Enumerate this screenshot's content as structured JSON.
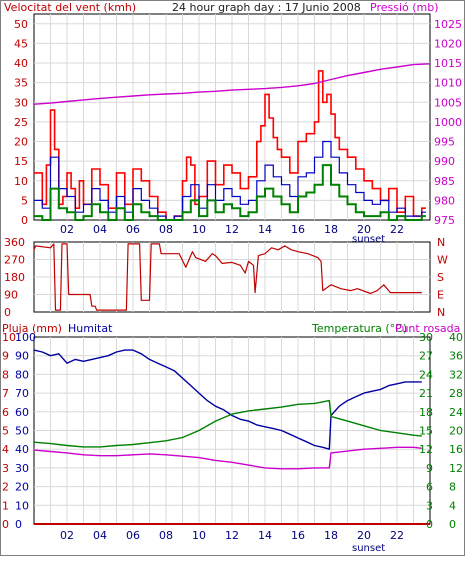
{
  "colors": {
    "wind": "#e00000",
    "wind_gust": "#ff0000",
    "wind_avg": "#0000c0",
    "wind_low": "#008000",
    "pressure": "#cc00cc",
    "direction": "#c00000",
    "rain": "#c00000",
    "humidity": "#0000a0",
    "temperature": "#008000",
    "dewpoint": "#cc00cc",
    "grid": "#d8d8d8",
    "frame": "#000000"
  },
  "chart_data": [
    {
      "type": "line",
      "title": "24 hour graph day : 17 Junio 2008",
      "left_axis_label": "Velocitat del vent (kmh)",
      "right_axis_label": "Pressió (mb)",
      "x_tick_labels": [
        "02",
        "04",
        "06",
        "08",
        "10",
        "12",
        "14",
        "16",
        "18",
        "20",
        "22"
      ],
      "x_annotation": "sunset",
      "y_ticks_left": [
        0,
        5,
        10,
        15,
        20,
        25,
        30,
        35,
        40,
        45,
        50
      ],
      "y_ticks_right": [
        975,
        980,
        985,
        990,
        995,
        1000,
        1005,
        1010,
        1015,
        1020,
        1025
      ],
      "ylim_left": [
        0,
        52.5
      ],
      "ylim_right": [
        975,
        1027.5
      ],
      "xlim": [
        0,
        24
      ],
      "series": [
        {
          "name": "Velocitat del vent (kmh)",
          "x": [
            0.0,
            0.5,
            0.75,
            1.0,
            1.25,
            1.5,
            1.75,
            2.0,
            2.25,
            2.5,
            2.75,
            3.0,
            3.5,
            4.0,
            4.5,
            5.0,
            5.5,
            6.0,
            6.5,
            7.0,
            7.5,
            8.0,
            8.5,
            9.0,
            9.25,
            9.5,
            9.75,
            10.0,
            10.5,
            11.0,
            11.5,
            12.0,
            12.5,
            13.0,
            13.5,
            13.75,
            14.0,
            14.25,
            14.5,
            14.75,
            15.0,
            15.5,
            16.0,
            16.5,
            17.0,
            17.25,
            17.5,
            17.75,
            18.0,
            18.25,
            18.5,
            19.0,
            19.5,
            20.0,
            20.5,
            21.0,
            21.5,
            22.0,
            22.5,
            23.0,
            23.5
          ],
          "values": [
            12,
            4,
            14,
            28,
            18,
            4,
            6,
            12,
            8,
            3,
            10,
            4,
            13,
            9,
            3,
            12,
            4,
            13,
            10,
            6,
            2,
            0,
            1,
            10,
            16,
            14,
            4,
            6,
            15,
            9,
            14,
            12,
            8,
            11,
            20,
            24,
            32,
            26,
            21,
            18,
            16,
            12,
            20,
            22,
            25,
            38,
            30,
            32,
            27,
            21,
            18,
            16,
            13,
            10,
            8,
            5,
            8,
            2,
            6,
            1,
            3
          ]
        },
        {
          "name": "avg wind",
          "x": [
            0.0,
            0.5,
            1.0,
            1.5,
            2.0,
            2.5,
            3.0,
            3.5,
            4.0,
            4.5,
            5.0,
            5.5,
            6.0,
            6.5,
            7.0,
            7.5,
            8.0,
            8.5,
            9.0,
            9.5,
            10.0,
            10.5,
            11.0,
            11.5,
            12.0,
            12.5,
            13.0,
            13.5,
            14.0,
            14.5,
            15.0,
            15.5,
            16.0,
            16.5,
            17.0,
            17.5,
            18.0,
            18.5,
            19.0,
            19.5,
            20.0,
            20.5,
            21.0,
            21.5,
            22.0,
            22.5,
            23.0,
            23.5
          ],
          "values": [
            5,
            3,
            16,
            8,
            6,
            2,
            4,
            8,
            5,
            2,
            6,
            2,
            8,
            5,
            3,
            1,
            0,
            1,
            6,
            9,
            3,
            9,
            5,
            8,
            6,
            4,
            5,
            10,
            14,
            11,
            9,
            6,
            11,
            12,
            16,
            20,
            16,
            12,
            9,
            7,
            5,
            4,
            5,
            2,
            3,
            1,
            1,
            2
          ]
        },
        {
          "name": "low wind",
          "x": [
            0.0,
            0.5,
            1.0,
            1.5,
            2.0,
            2.5,
            3.0,
            3.5,
            4.0,
            4.5,
            5.0,
            5.5,
            6.0,
            6.5,
            7.0,
            7.5,
            8.0,
            8.5,
            9.0,
            9.5,
            10.0,
            10.5,
            11.0,
            11.5,
            12.0,
            12.5,
            13.0,
            13.5,
            14.0,
            14.5,
            15.0,
            15.5,
            16.0,
            16.5,
            17.0,
            17.5,
            18.0,
            18.5,
            19.0,
            19.5,
            20.0,
            20.5,
            21.0,
            21.5,
            22.0,
            22.5,
            23.0,
            23.5
          ],
          "values": [
            1,
            0,
            8,
            3,
            2,
            0,
            1,
            4,
            2,
            0,
            3,
            0,
            4,
            2,
            1,
            0,
            0,
            0,
            2,
            5,
            1,
            5,
            2,
            4,
            3,
            1,
            2,
            6,
            8,
            6,
            4,
            2,
            6,
            7,
            9,
            14,
            9,
            6,
            4,
            2,
            1,
            1,
            2,
            0,
            1,
            0,
            0,
            1
          ]
        },
        {
          "name": "Pressió (mb)",
          "axis": "right",
          "x": [
            0,
            1,
            2,
            3,
            4,
            5,
            6,
            7,
            8,
            9,
            10,
            11,
            12,
            13,
            14,
            15,
            16,
            17,
            18,
            19,
            20,
            21,
            22,
            23,
            24
          ],
          "values": [
            1004.5,
            1004.8,
            1005.2,
            1005.6,
            1006.0,
            1006.3,
            1006.6,
            1006.9,
            1007.1,
            1007.3,
            1007.6,
            1007.8,
            1008.1,
            1008.3,
            1008.5,
            1008.8,
            1009.2,
            1009.8,
            1010.8,
            1011.8,
            1012.6,
            1013.4,
            1014.0,
            1014.6,
            1014.8
          ]
        }
      ]
    },
    {
      "type": "line",
      "left_axis_label": "",
      "y_ticks_left": [
        0,
        90,
        180,
        270,
        360
      ],
      "right_tick_labels": [
        "N",
        "E",
        "S",
        "W",
        "N"
      ],
      "ylim_left": [
        0,
        360
      ],
      "xlim": [
        0,
        24
      ],
      "series": [
        {
          "name": "direction",
          "x": [
            0.0,
            0.1,
            1.0,
            1.2,
            1.3,
            1.6,
            1.7,
            2.0,
            2.1,
            3.4,
            3.5,
            3.7,
            3.8,
            4.6,
            4.7,
            5.6,
            5.7,
            6.4,
            6.5,
            7.0,
            7.1,
            7.6,
            7.7,
            8.8,
            9.2,
            9.4,
            9.6,
            9.8,
            10.4,
            10.8,
            11.0,
            11.4,
            12.0,
            12.5,
            12.8,
            13.0,
            13.3,
            13.4,
            13.6,
            14.0,
            14.4,
            14.8,
            15.2,
            15.6,
            16.0,
            16.6,
            17.2,
            17.4,
            17.5,
            18.0,
            18.6,
            19.2,
            19.6,
            20.4,
            20.8,
            21.2,
            21.6,
            22.4,
            23.5
          ],
          "values": [
            320,
            340,
            330,
            350,
            10,
            10,
            350,
            350,
            90,
            90,
            30,
            30,
            10,
            10,
            10,
            10,
            350,
            350,
            60,
            60,
            350,
            350,
            300,
            300,
            230,
            270,
            310,
            280,
            260,
            300,
            290,
            250,
            255,
            240,
            200,
            260,
            240,
            100,
            290,
            300,
            330,
            320,
            340,
            320,
            310,
            300,
            280,
            260,
            110,
            140,
            120,
            110,
            120,
            95,
            110,
            140,
            100,
            100,
            100
          ]
        }
      ]
    },
    {
      "type": "line",
      "left_axis_labels": [
        "Pluja (mm)",
        "Humitat"
      ],
      "right_axis_labels": [
        "Temperatura (°C)",
        "Punt rosada"
      ],
      "x_tick_labels": [
        "02",
        "04",
        "06",
        "08",
        "10",
        "12",
        "14",
        "16",
        "18",
        "20",
        "22"
      ],
      "x_annotation": "sunset",
      "y_ticks_rain": [
        0,
        1,
        2,
        3,
        4,
        5,
        6,
        7,
        8,
        9,
        10
      ],
      "y_ticks_humidity": [
        0,
        10,
        20,
        30,
        40,
        50,
        60,
        70,
        80,
        90,
        100
      ],
      "y_ticks_temp_inner": [
        0,
        3,
        6,
        9,
        12,
        15,
        18,
        21,
        24,
        27,
        30
      ],
      "y_ticks_temp_right": [
        0,
        4,
        8,
        12,
        16,
        20,
        24,
        28,
        32,
        36,
        40
      ],
      "ylim_humidity": [
        0,
        100
      ],
      "ylim_temperature": [
        0,
        40
      ],
      "xlim": [
        0,
        24
      ],
      "series": [
        {
          "name": "Pluja (mm)",
          "x": [
            0,
            24
          ],
          "values": [
            0,
            0
          ]
        },
        {
          "name": "Humitat",
          "x": [
            0.0,
            0.5,
            1.0,
            1.5,
            2.0,
            2.5,
            3.0,
            3.5,
            4.0,
            4.5,
            5.0,
            5.5,
            6.0,
            6.5,
            7.0,
            7.5,
            8.0,
            8.5,
            9.0,
            9.5,
            10.0,
            10.5,
            11.0,
            11.5,
            12.0,
            12.5,
            13.0,
            13.5,
            14.0,
            14.5,
            15.0,
            15.5,
            16.0,
            16.5,
            17.0,
            17.5,
            17.9,
            18.0,
            18.5,
            19.0,
            19.5,
            20.0,
            20.5,
            21.0,
            21.5,
            22.0,
            22.5,
            23.0,
            23.5
          ],
          "values": [
            93,
            92,
            90,
            91,
            86,
            88,
            87,
            88,
            89,
            90,
            92,
            93,
            93,
            91,
            88,
            86,
            84,
            82,
            78,
            74,
            70,
            66,
            63,
            61,
            58,
            56,
            55,
            53,
            52,
            51,
            50,
            48,
            46,
            44,
            42,
            41,
            40,
            58,
            63,
            66,
            68,
            70,
            71,
            72,
            74,
            75,
            76,
            76,
            76
          ]
        },
        {
          "name": "Temperatura (°C)",
          "x": [
            0,
            1,
            2,
            3,
            4,
            5,
            6,
            7,
            8,
            9,
            10,
            11,
            12,
            13,
            14,
            15,
            16,
            17,
            17.9,
            18.0,
            18.5,
            19,
            20,
            21,
            22,
            23,
            23.5
          ],
          "values": [
            17.5,
            17.2,
            16.8,
            16.5,
            16.5,
            16.8,
            17.0,
            17.4,
            17.8,
            18.5,
            20.0,
            22.0,
            23.5,
            24.2,
            24.6,
            25.0,
            25.6,
            25.8,
            26.4,
            23.0,
            22.5,
            22.0,
            21.0,
            20.0,
            19.5,
            19.0,
            18.8
          ]
        },
        {
          "name": "Punt rosada",
          "x": [
            0,
            1,
            2,
            3,
            4,
            5,
            6,
            7,
            8,
            9,
            10,
            11,
            12,
            13,
            14,
            15,
            16,
            17,
            17.9,
            18.0,
            19,
            20,
            21,
            22,
            23,
            23.5
          ],
          "values": [
            15.8,
            15.5,
            15.2,
            14.8,
            14.6,
            14.6,
            14.8,
            15.0,
            14.8,
            14.5,
            14.2,
            13.6,
            13.2,
            12.6,
            12.0,
            11.8,
            11.8,
            12.0,
            12.0,
            15.2,
            15.6,
            16.0,
            16.2,
            16.4,
            16.4,
            16.2
          ]
        }
      ]
    }
  ]
}
